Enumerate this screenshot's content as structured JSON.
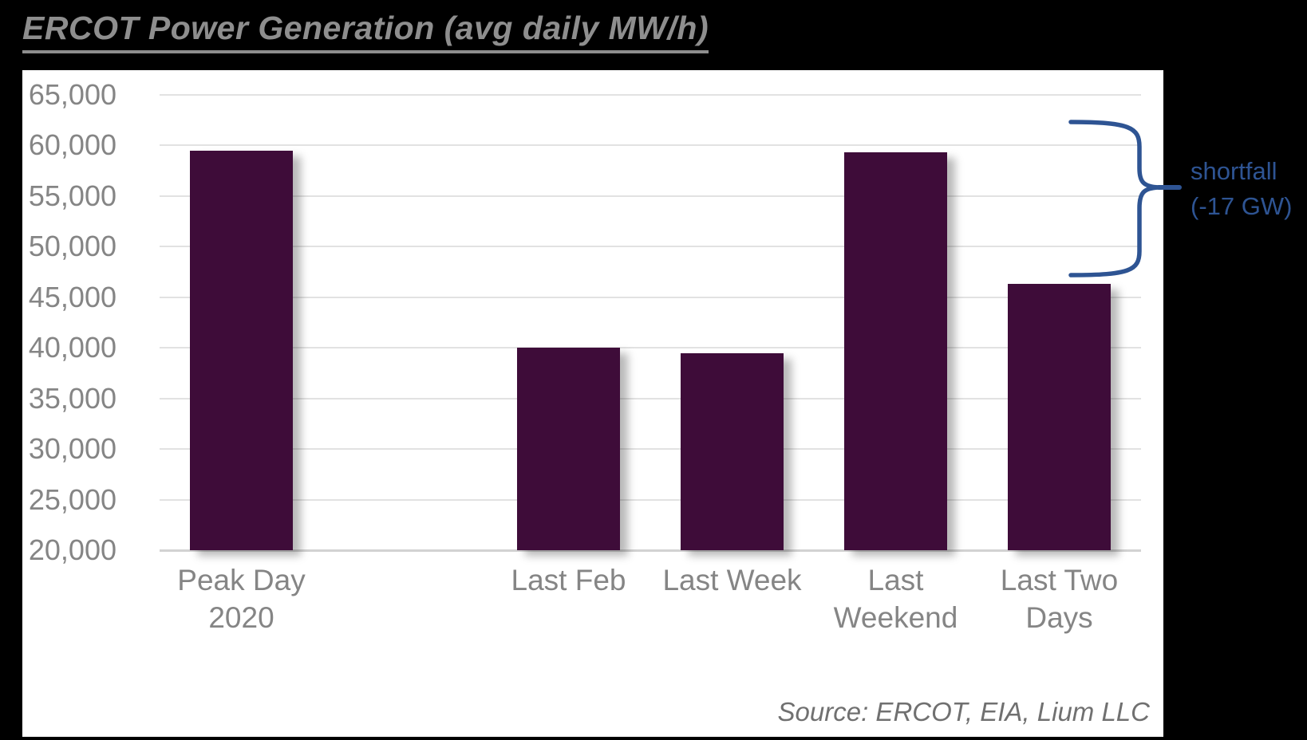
{
  "page": {
    "background_color": "#000000",
    "card_color": "#ffffff"
  },
  "title": {
    "text": "ERCOT Power Generation (avg daily MW/h)",
    "color": "#8e8e8e"
  },
  "annotation": {
    "text": "shortfall\n(-17 GW)",
    "color": "#2e5493"
  },
  "source_note": "Source: ERCOT, EIA, Lium LLC",
  "chart_data": {
    "type": "bar",
    "title": "ERCOT Power Generation (avg daily MW/h)",
    "categories": [
      "Peak Day 2020",
      "Last Feb",
      "Last Week",
      "Last Weekend",
      "Last Two Days"
    ],
    "values": [
      59500,
      40000,
      39500,
      59300,
      46300
    ],
    "category_label_lines": [
      [
        "Peak Day",
        "2020"
      ],
      [
        "Last Feb"
      ],
      [
        "Last Week"
      ],
      [
        "Last",
        "Weekend"
      ],
      [
        "Last Two",
        "Days"
      ]
    ],
    "xlabel": "",
    "ylabel": "",
    "ylim": [
      20000,
      65000
    ],
    "ytick_step": 5000,
    "ytick_labels": [
      "20,000",
      "25,000",
      "30,000",
      "35,000",
      "40,000",
      "45,000",
      "50,000",
      "55,000",
      "60,000",
      "65,000"
    ],
    "grid": true,
    "gridline_color": "#e2e2e2",
    "bar_color": "#3e0c39",
    "axis_label_color": "#858585",
    "legend": "none",
    "layout_hints": {
      "empty_slot_after_first_category": true,
      "num_slots": 6,
      "bar_slots": [
        0,
        2,
        3,
        4,
        5
      ],
      "annotation_brace": "blue right-brace spanning from ~62,300 down to ~47,300 at right edge, pointing to label 'shortfall (-17 GW)'"
    }
  }
}
